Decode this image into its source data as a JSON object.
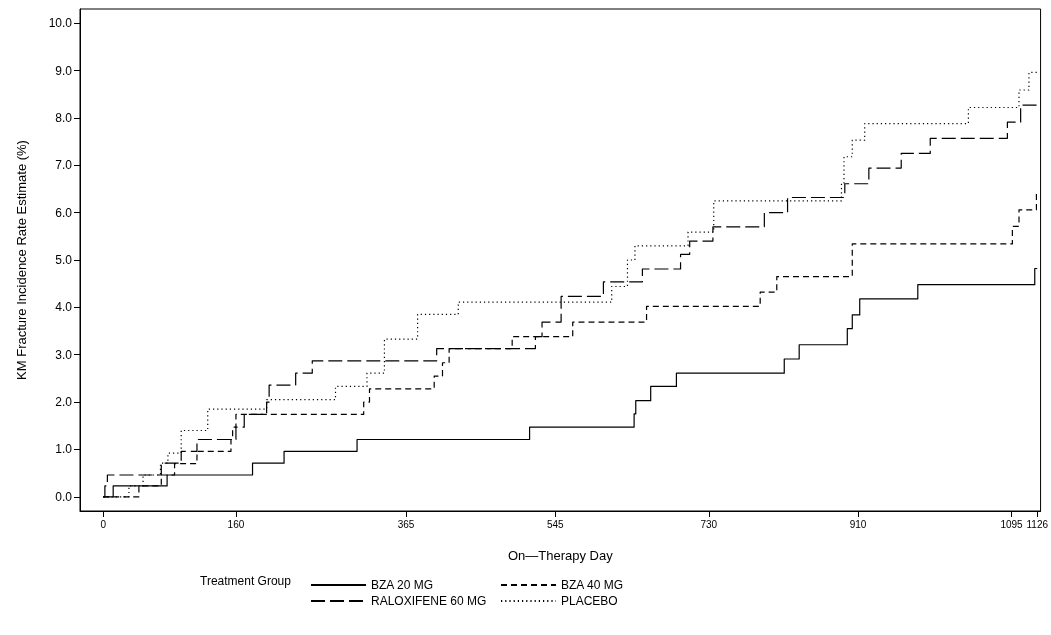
{
  "chart_data": {
    "type": "step",
    "xlabel": "On—Therapy Day",
    "ylabel": "KM Fracture Incidence Rate Estimate (%)",
    "legend_title": "Treatment Group",
    "legend": "bottom",
    "grid": false,
    "marker": "none",
    "xlim": [
      -28,
      1130
    ],
    "xticks": [
      0,
      160,
      365,
      545,
      730,
      910,
      1095,
      1126
    ],
    "ylim": [
      -0.3,
      10.3
    ],
    "yticks": [
      {
        "value": 0,
        "label": "0.0"
      },
      {
        "value": 1,
        "label": "1.0"
      },
      {
        "value": 2,
        "label": "2.0"
      },
      {
        "value": 3,
        "label": "3.0"
      },
      {
        "value": 4,
        "label": "4.0"
      },
      {
        "value": 5,
        "label": "5.0"
      },
      {
        "value": 6,
        "label": "6.0"
      },
      {
        "value": 7,
        "label": "7.0"
      },
      {
        "value": 8,
        "label": "8.0"
      },
      {
        "value": 9,
        "label": "9.0"
      },
      {
        "value": 10,
        "label": "10.0"
      }
    ],
    "series": [
      {
        "name": "BZA 20 MG",
        "color": "#000000",
        "line_style": "solid",
        "x": [
          0,
          12,
          77,
          180,
          218,
          306,
          514,
          640,
          642,
          660,
          691,
          821,
          839,
          897,
          903,
          912,
          982,
          1123,
          1126
        ],
        "values": [
          0,
          0.23,
          0.46,
          0.71,
          0.96,
          1.21,
          1.47,
          1.75,
          2.03,
          2.33,
          2.61,
          2.91,
          3.21,
          3.55,
          3.84,
          4.18,
          4.48,
          4.82,
          4.82
        ]
      },
      {
        "name": "BZA 40 MG",
        "color": "#000000",
        "line_style": "dashed",
        "x": [
          0,
          43,
          70,
          86,
          113,
          154,
          156,
          160,
          314,
          321,
          399,
          409,
          417,
          493,
          566,
          655,
          792,
          812,
          903,
          1096,
          1104,
          1125,
          1126
        ],
        "values": [
          0,
          0.23,
          0.46,
          0.7,
          0.96,
          1.21,
          1.47,
          1.74,
          2.0,
          2.28,
          2.55,
          2.83,
          3.13,
          3.38,
          3.69,
          4.02,
          4.32,
          4.65,
          5.34,
          5.71,
          6.06,
          6.43,
          6.43
        ]
      },
      {
        "name": "RALOXIFENE 60 MG",
        "color": "#000000",
        "line_style": "longdash",
        "x": [
          0,
          2,
          5,
          70,
          94,
          113,
          160,
          170,
          197,
          200,
          232,
          252,
          402,
          521,
          529,
          552,
          603,
          650,
          696,
          707,
          735,
          797,
          825,
          894,
          923,
          962,
          997,
          1090,
          1106,
          1126
        ],
        "values": [
          0,
          0.23,
          0.46,
          0.71,
          0.96,
          1.21,
          1.47,
          1.74,
          2.0,
          2.36,
          2.61,
          2.87,
          3.13,
          3.38,
          3.69,
          4.23,
          4.54,
          4.81,
          5.12,
          5.4,
          5.7,
          6.0,
          6.32,
          6.61,
          6.94,
          7.25,
          7.57,
          7.91,
          8.27,
          8.27
        ]
      },
      {
        "name": "PLACEBO",
        "color": "#000000",
        "line_style": "dotted",
        "x": [
          0,
          31,
          48,
          69,
          78,
          94,
          126,
          197,
          280,
          318,
          339,
          379,
          428,
          613,
          632,
          641,
          705,
          736,
          890,
          893,
          903,
          918,
          1043,
          1104,
          1116,
          1126
        ],
        "values": [
          0,
          0.23,
          0.46,
          0.71,
          0.92,
          1.4,
          1.85,
          2.05,
          2.33,
          2.61,
          3.33,
          3.85,
          4.11,
          4.44,
          5.0,
          5.3,
          5.59,
          6.25,
          6.62,
          7.18,
          7.53,
          7.88,
          8.22,
          8.59,
          8.96,
          8.96
        ]
      }
    ]
  }
}
